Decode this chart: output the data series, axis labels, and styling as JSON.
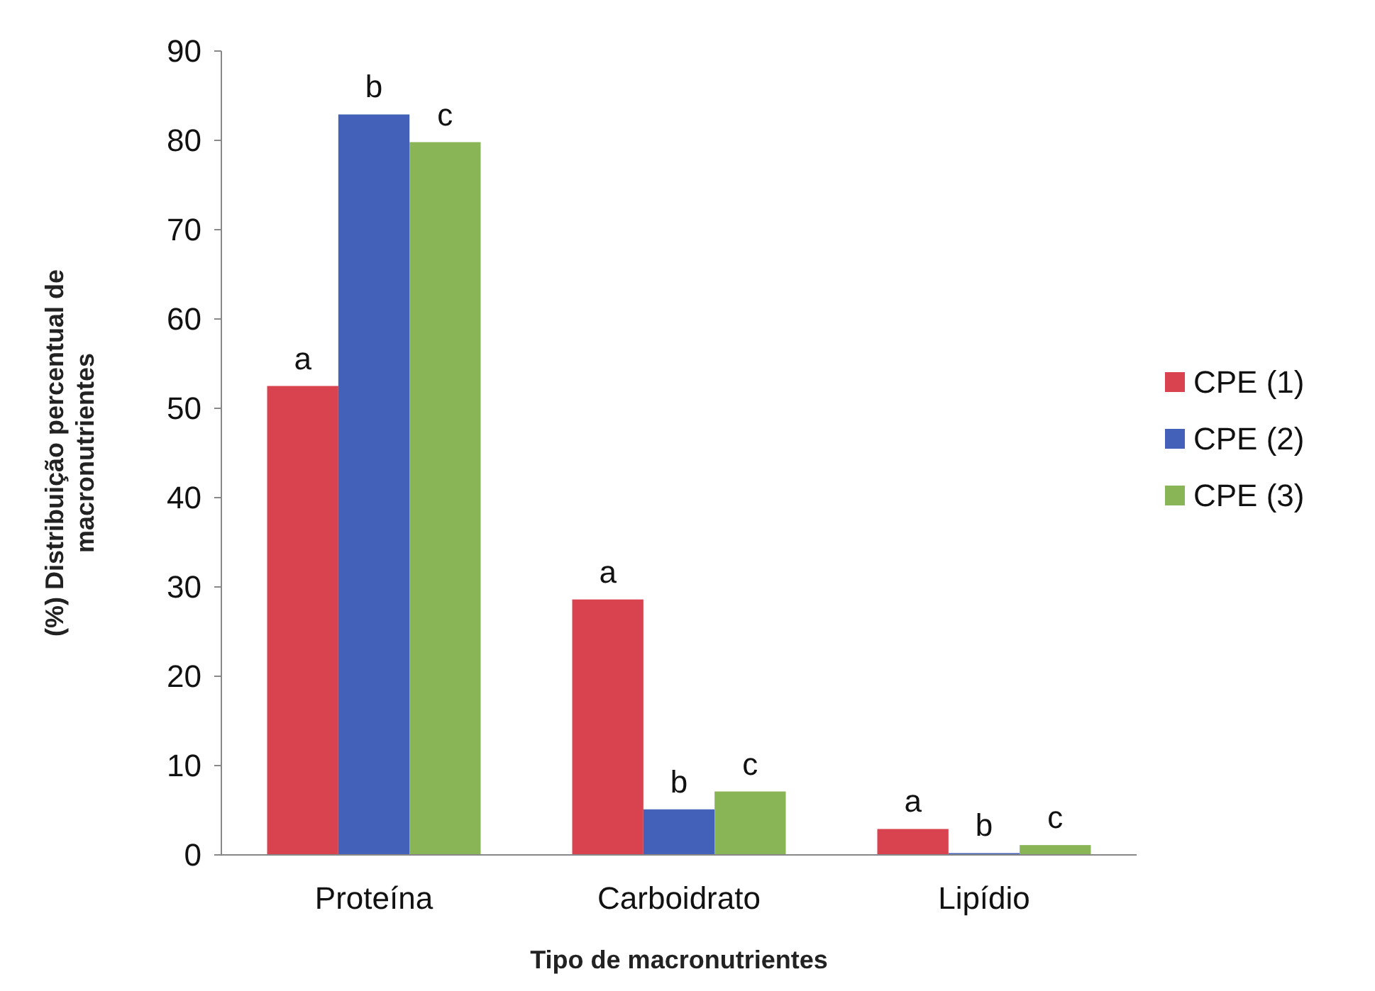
{
  "chart_data": {
    "type": "bar",
    "xlabel": "Tipo de macronutrientes",
    "ylabel": "(%) Distribuição percentual de macronutrientes",
    "categories": [
      "Proteína",
      "Carboidrato",
      "Lipídio"
    ],
    "series": [
      {
        "name": "CPE (1)",
        "color": "#d9434f",
        "values": [
          52.5,
          28.6,
          2.9
        ],
        "value_labels": [
          "a",
          "a",
          "a"
        ]
      },
      {
        "name": "CPE (2)",
        "color": "#4361b8",
        "values": [
          82.9,
          5.1,
          0.2
        ],
        "value_labels": [
          "b",
          "b",
          "b"
        ]
      },
      {
        "name": "CPE (3)",
        "color": "#8ab557",
        "values": [
          79.8,
          7.1,
          1.1
        ],
        "value_labels": [
          "c",
          "c",
          "c"
        ]
      }
    ],
    "ylim": [
      0,
      90
    ],
    "yticks": [
      0,
      10,
      20,
      30,
      40,
      50,
      60,
      70,
      80,
      90
    ],
    "grid": false,
    "legend": "right"
  }
}
